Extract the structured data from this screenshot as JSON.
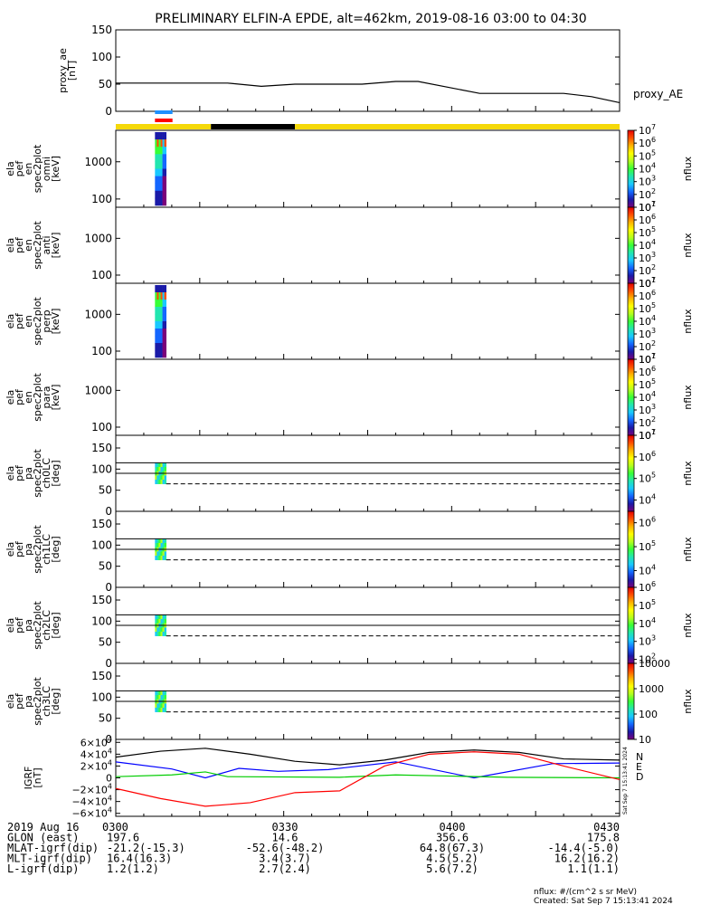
{
  "title": "PRELIMINARY ELFIN-A EPDE, alt=462km, 2019-08-16 03:00 to 04:30",
  "time_range": [
    "03:00",
    "04:30"
  ],
  "colorbar_palette": [
    "#7a007a",
    "#1a1aa8",
    "#1466ff",
    "#19c8ff",
    "#22e6b0",
    "#37ff37",
    "#b4ff1e",
    "#ffff00",
    "#ffb400",
    "#ff5000",
    "#e60000"
  ],
  "colors": {
    "black": "#000000",
    "red": "#ff0000",
    "blue": "#0000ff",
    "green": "#00cc00",
    "yellow": "#f5d90a",
    "sky": "#1e90ff"
  },
  "chart_data": [
    {
      "id": "proxy_ae",
      "type": "line",
      "ylabel_lines": [
        "proxy_ae",
        "[nT]"
      ],
      "yticks": [
        "150",
        "100",
        "50",
        "0"
      ],
      "ylim": [
        0,
        150
      ],
      "series": [
        {
          "name": "proxy_AE",
          "x": [
            "03:00",
            "03:20",
            "03:26",
            "03:32",
            "03:44",
            "03:50",
            "03:54",
            "04:05",
            "04:20",
            "04:25",
            "04:30"
          ],
          "y": [
            52,
            52,
            46,
            50,
            50,
            55,
            55,
            33,
            33,
            27,
            16
          ]
        }
      ],
      "legend": "proxy_AE"
    },
    {
      "id": "indicator_bars",
      "type": "bar",
      "segments": [
        {
          "color": "yellow",
          "from": "03:00",
          "to": "03:17"
        },
        {
          "color": "black",
          "from": "03:17",
          "to": "03:32"
        },
        {
          "color": "yellow",
          "from": "03:32",
          "to": "04:30"
        }
      ],
      "science_zone": {
        "from": "03:07",
        "to": "03:09"
      }
    },
    {
      "id": "ela_pef_en_spec2plot_omni",
      "type": "heatmap",
      "ylabel_lines": [
        "ela",
        "pef",
        "en",
        "spec2plot",
        "omni",
        "[keV]"
      ],
      "yticks": [
        "1000",
        "100"
      ],
      "ylim": [
        60,
        7000
      ],
      "scale": "log",
      "data_window": [
        "03:07",
        "03:09"
      ],
      "zlabel": "nflux",
      "zticks": [
        "10^7",
        "10^6",
        "10^5",
        "10^4",
        "10^3",
        "10^2",
        "10^1"
      ],
      "zlim": [
        10,
        10000000
      ]
    },
    {
      "id": "ela_pef_en_spec2plot_anti",
      "type": "heatmap",
      "ylabel_lines": [
        "ela",
        "pef",
        "en",
        "spec2plot",
        "anti",
        "[keV]"
      ],
      "yticks": [
        "1000",
        "100"
      ],
      "ylim": [
        60,
        7000
      ],
      "scale": "log",
      "data_window": null,
      "zlabel": "nflux",
      "zticks": [
        "10^7",
        "10^6",
        "10^5",
        "10^4",
        "10^3",
        "10^2",
        "10^1"
      ],
      "zlim": [
        10,
        10000000
      ]
    },
    {
      "id": "ela_pef_en_spec2plot_perp",
      "type": "heatmap",
      "ylabel_lines": [
        "ela",
        "pef",
        "en",
        "spec2plot",
        "perp",
        "[keV]"
      ],
      "yticks": [
        "1000",
        "100"
      ],
      "ylim": [
        60,
        7000
      ],
      "scale": "log",
      "data_window": [
        "03:07",
        "03:09"
      ],
      "zlabel": "nflux",
      "zticks": [
        "10^7",
        "10^6",
        "10^5",
        "10^4",
        "10^3",
        "10^2",
        "10^1"
      ],
      "zlim": [
        10,
        10000000
      ]
    },
    {
      "id": "ela_pef_en_spec2plot_para",
      "type": "heatmap",
      "ylabel_lines": [
        "ela",
        "pef",
        "en",
        "spec2plot",
        "para",
        "[keV]"
      ],
      "yticks": [
        "1000",
        "100"
      ],
      "ylim": [
        60,
        7000
      ],
      "scale": "log",
      "data_window": null,
      "zlabel": "nflux",
      "zticks": [
        "10^7",
        "10^6",
        "10^5",
        "10^4",
        "10^3",
        "10^2",
        "10^1"
      ],
      "zlim": [
        10,
        10000000
      ]
    },
    {
      "id": "ela_pef_pa_spec2plot_ch0LC",
      "type": "heatmap",
      "ylabel_lines": [
        "ela",
        "pef",
        "pa",
        "spec2plot",
        "ch0LC",
        "[deg]"
      ],
      "yticks": [
        "150",
        "100",
        "50",
        "0"
      ],
      "ylim": [
        0,
        180
      ],
      "data_window": [
        "03:07",
        "03:09"
      ],
      "lines": {
        "solid": [
          115,
          90
        ],
        "dashed": 65
      },
      "zlabel": "nflux",
      "zticks": [
        "10^7",
        "10^6",
        "10^5",
        "10^4"
      ],
      "zlim": [
        3000,
        10000000
      ]
    },
    {
      "id": "ela_pef_pa_spec2plot_ch1LC",
      "type": "heatmap",
      "ylabel_lines": [
        "ela",
        "pef",
        "pa",
        "spec2plot",
        "ch1LC",
        "[deg]"
      ],
      "yticks": [
        "150",
        "100",
        "50",
        "0"
      ],
      "ylim": [
        0,
        180
      ],
      "data_window": [
        "03:07",
        "03:09"
      ],
      "lines": {
        "solid": [
          115,
          90
        ],
        "dashed": 65
      },
      "zlabel": "nflux",
      "zticks": [
        "10^6",
        "10^5",
        "10^4"
      ],
      "zlim": [
        2000,
        3000000
      ]
    },
    {
      "id": "ela_pef_pa_spec2plot_ch2LC",
      "type": "heatmap",
      "ylabel_lines": [
        "ela",
        "pef",
        "pa",
        "spec2plot",
        "ch2LC",
        "[deg]"
      ],
      "yticks": [
        "150",
        "100",
        "50",
        "0"
      ],
      "ylim": [
        0,
        180
      ],
      "data_window": [
        "03:07",
        "03:09"
      ],
      "lines": {
        "solid": [
          115,
          90
        ],
        "dashed": 65
      },
      "zlabel": "nflux",
      "zticks": [
        "10^6",
        "10^5",
        "10^4",
        "10^3",
        "10^2"
      ],
      "zlim": [
        60,
        1000000
      ]
    },
    {
      "id": "ela_pef_pa_spec2plot_ch3LC",
      "type": "heatmap",
      "ylabel_lines": [
        "ela",
        "pef",
        "pa",
        "spec2plot",
        "ch3LC",
        "[deg]"
      ],
      "yticks": [
        "150",
        "100",
        "50",
        "0"
      ],
      "ylim": [
        0,
        180
      ],
      "data_window": [
        "03:07",
        "03:09"
      ],
      "lines": {
        "solid": [
          115,
          90
        ],
        "dashed": 65
      },
      "zlabel": "nflux",
      "zticks": [
        "10000",
        "1000",
        "100",
        "10"
      ],
      "zlim": [
        10,
        10000
      ]
    },
    {
      "id": "igrf",
      "type": "line",
      "ylabel_lines": [
        "IGRF",
        "[nT]"
      ],
      "yticks": [
        "6×10^4",
        "4×10^4",
        "2×10^4",
        "0",
        "−2×10^4",
        "−4×10^4",
        "−6×10^4"
      ],
      "ylim": [
        -65000,
        65000
      ],
      "series": [
        {
          "name": "N",
          "color": "blue",
          "x": [
            "03:00",
            "03:10",
            "03:16",
            "03:22",
            "03:29",
            "03:38",
            "03:50",
            "04:04",
            "04:18",
            "04:30"
          ],
          "y": [
            27000,
            15000,
            0,
            16000,
            11000,
            14000,
            27000,
            0,
            24000,
            25000
          ]
        },
        {
          "name": "E",
          "color": "green",
          "x": [
            "03:00",
            "03:10",
            "03:16",
            "03:20",
            "03:40",
            "03:50",
            "04:00",
            "04:10",
            "04:30"
          ],
          "y": [
            2000,
            5000,
            10000,
            2000,
            1000,
            5000,
            3000,
            1000,
            0
          ]
        },
        {
          "name": "D",
          "color": "red",
          "x": [
            "03:00",
            "03:08",
            "03:16",
            "03:24",
            "03:32",
            "03:40",
            "03:48",
            "03:56",
            "04:04",
            "04:12",
            "04:20",
            "04:30"
          ],
          "y": [
            -18000,
            -35000,
            -48000,
            -42000,
            -25000,
            -22000,
            20000,
            40000,
            44000,
            40000,
            20000,
            -3000
          ]
        },
        {
          "name": "",
          "color": "black",
          "x": [
            "03:00",
            "03:08",
            "03:16",
            "03:24",
            "03:32",
            "03:40",
            "03:48",
            "03:56",
            "04:04",
            "04:12",
            "04:20",
            "04:30"
          ],
          "y": [
            35000,
            45000,
            50000,
            40000,
            28000,
            22000,
            30000,
            43000,
            47000,
            43000,
            32000,
            30000
          ]
        }
      ],
      "legend": [
        "N",
        "E",
        "D"
      ]
    }
  ],
  "x_axis_table": {
    "rows": [
      {
        "label": "2019 Aug 16",
        "values": [
          "0300",
          "0330",
          "0400",
          "0430"
        ]
      },
      {
        "label": "GLON (east)",
        "values": [
          "197.6",
          "14.6",
          "356.6",
          "175.8"
        ]
      },
      {
        "label": "MLAT-igrf(dip)",
        "values": [
          "-21.2(-15.3)",
          "-52.6(-48.2)",
          "64.8(67.3)",
          "-14.4(-5.0)"
        ]
      },
      {
        "label": "MLT-igrf(dip)",
        "values": [
          "16.4(16.3)",
          "3.4(3.7)",
          "4.5(5.2)",
          "16.2(16.2)"
        ]
      },
      {
        "label": "L-igrf(dip)",
        "values": [
          "1.2(1.2)",
          "2.7(2.4)",
          "5.6(7.2)",
          "1.1(1.1)"
        ]
      }
    ]
  },
  "footer": {
    "units": "nflux: #/(cm^2 s sr MeV)",
    "created": "Created: Sat Sep  7 15:13:41 2024",
    "side_stamp": "Sat Sep  7 15:13:41 2024"
  }
}
